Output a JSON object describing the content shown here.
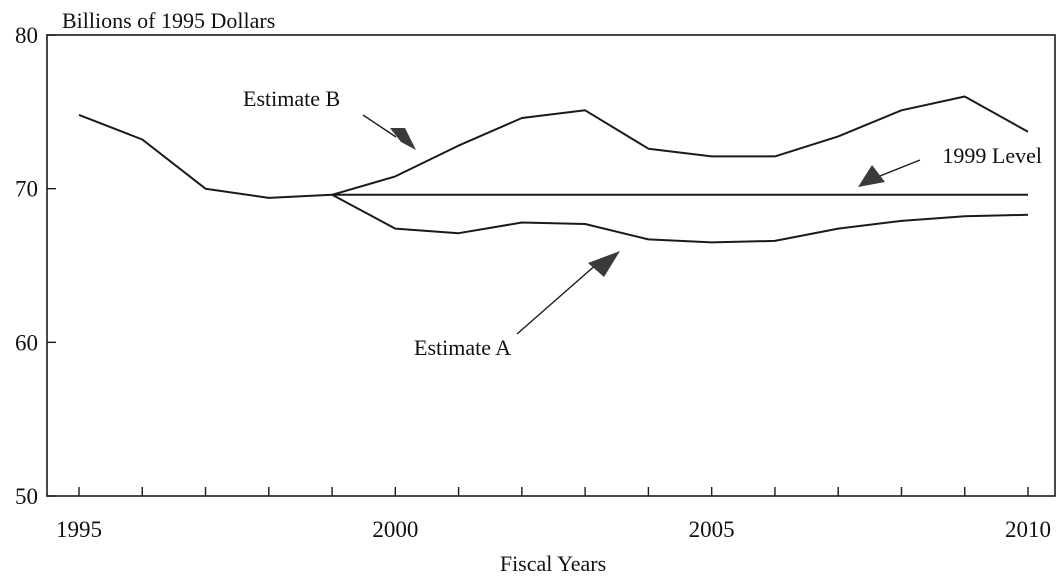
{
  "chart_data": {
    "type": "line",
    "ylabel": "Billions of 1995 Dollars",
    "xlabel": "Fiscal Years",
    "ylim": [
      50,
      80
    ],
    "xlim": [
      1995,
      2010
    ],
    "y_ticks": [
      50,
      60,
      70,
      80
    ],
    "x_ticks": [
      1995,
      2000,
      2005,
      2010
    ],
    "x_minor_ticks": [
      1995,
      1996,
      1997,
      1998,
      1999,
      2000,
      2001,
      2002,
      2003,
      2004,
      2005,
      2006,
      2007,
      2008,
      2009,
      2010
    ],
    "grid": false,
    "series": [
      {
        "key": "history",
        "x": [
          1995,
          1996,
          1997,
          1998,
          1999
        ],
        "values": [
          74.8,
          73.2,
          70.0,
          69.4,
          69.6
        ]
      },
      {
        "key": "estimate_b",
        "name": "Estimate B",
        "x": [
          1999,
          2000,
          2001,
          2002,
          2003,
          2004,
          2005,
          2006,
          2007,
          2008,
          2009,
          2010
        ],
        "values": [
          69.6,
          70.8,
          72.8,
          74.6,
          75.1,
          72.6,
          72.1,
          72.1,
          73.4,
          75.1,
          76.0,
          73.7
        ]
      },
      {
        "key": "level_1999",
        "name": "1999 Level",
        "x": [
          1999,
          2010
        ],
        "values": [
          69.6,
          69.6
        ]
      },
      {
        "key": "estimate_a",
        "name": "Estimate A",
        "x": [
          1999,
          2000,
          2001,
          2002,
          2003,
          2004,
          2005,
          2006,
          2007,
          2008,
          2009,
          2010
        ],
        "values": [
          69.6,
          67.4,
          67.1,
          67.8,
          67.7,
          66.7,
          66.5,
          66.6,
          67.4,
          67.9,
          68.2,
          68.3
        ]
      }
    ],
    "annotations": [
      {
        "key": "estimate_b",
        "text": "Estimate B"
      },
      {
        "key": "level_1999",
        "text": "1999 Level"
      },
      {
        "key": "estimate_a",
        "text": "Estimate A"
      }
    ]
  }
}
